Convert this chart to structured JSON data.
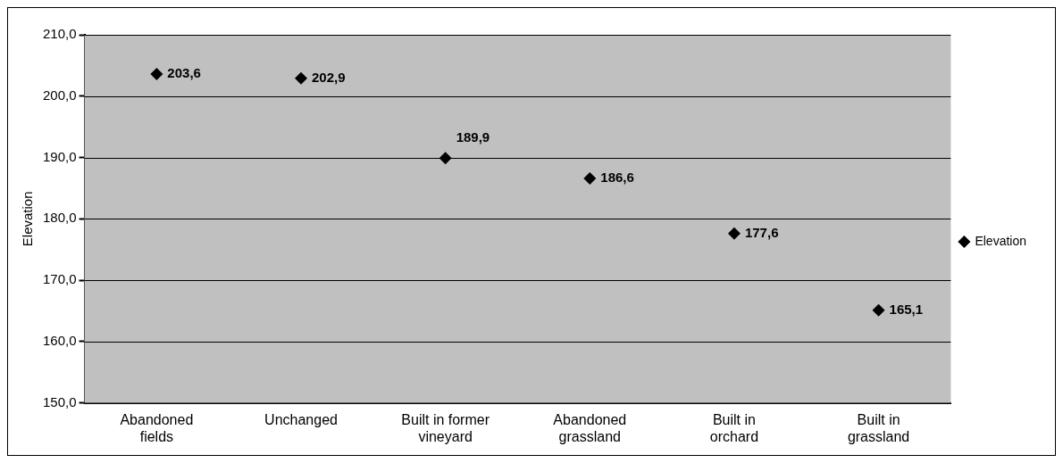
{
  "chart_data": {
    "type": "scatter",
    "ylabel": "Elevation",
    "categories": [
      "Abandoned fields",
      "Unchanged",
      "Built in former vineyard",
      "Abandoned grassland",
      "Built in orchard",
      "Built in grassland"
    ],
    "series": [
      {
        "name": "Elevation",
        "color": "#000000",
        "values": [
          203.6,
          202.9,
          189.9,
          186.6,
          177.6,
          165.1
        ],
        "value_labels": [
          "203,6",
          "202,9",
          "189,9",
          "186,6",
          "177,6",
          "165,1"
        ]
      }
    ],
    "ylim": [
      150,
      210
    ],
    "yticks": [
      {
        "value": 150,
        "label": "150,0"
      },
      {
        "value": 160,
        "label": "160,0"
      },
      {
        "value": 170,
        "label": "170,0"
      },
      {
        "value": 180,
        "label": "180,0"
      },
      {
        "value": 190,
        "label": "190,0"
      },
      {
        "value": 200,
        "label": "200,0"
      },
      {
        "value": 210,
        "label": "210,0"
      }
    ],
    "grid": "y",
    "legend": "right",
    "marker": "diamond"
  }
}
